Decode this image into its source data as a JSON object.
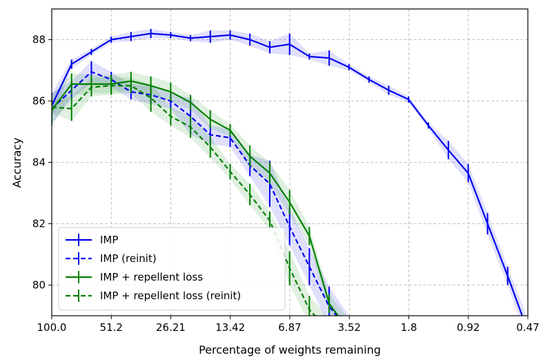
{
  "chart_data": {
    "type": "line",
    "xlabel": "Percentage of weights remaining",
    "ylabel": "Accuracy",
    "x_tick_labels": [
      "100.0",
      "51.2",
      "26.21",
      "13.42",
      "6.87",
      "3.52",
      "1.8",
      "0.92",
      "0.47"
    ],
    "y_ticks": [
      80,
      82,
      84,
      86,
      88
    ],
    "ylim": [
      79.0,
      89.0
    ],
    "x_scale": "log",
    "grid": true,
    "legend_position": "lower-left",
    "series": [
      {
        "name": "IMP",
        "color": "#0000ee",
        "dash": "solid",
        "x": [
          100.0,
          80.0,
          64.0,
          51.2,
          40.96,
          32.77,
          26.21,
          20.97,
          16.78,
          13.42,
          10.74,
          8.59,
          6.87,
          5.5,
          4.4,
          3.52,
          2.81,
          2.25,
          1.8,
          1.44,
          1.15,
          0.92,
          0.74,
          0.59,
          0.47
        ],
        "values": [
          85.85,
          87.2,
          87.6,
          88.0,
          88.1,
          88.2,
          88.15,
          88.05,
          88.1,
          88.15,
          88.0,
          87.75,
          87.85,
          87.45,
          87.4,
          87.1,
          86.7,
          86.35,
          86.05,
          85.2,
          84.4,
          83.65,
          82.0,
          80.3,
          78.5
        ],
        "errors": [
          0.4,
          0.15,
          0.1,
          0.1,
          0.15,
          0.15,
          0.1,
          0.1,
          0.2,
          0.15,
          0.2,
          0.2,
          0.35,
          0.1,
          0.25,
          0.1,
          0.1,
          0.15,
          0.1,
          0.1,
          0.3,
          0.3,
          0.35,
          0.3,
          0.4
        ]
      },
      {
        "name": "IMP (reinit)",
        "color": "#0000ee",
        "dash": "dashed",
        "x": [
          100.0,
          80.0,
          64.0,
          51.2,
          40.96,
          32.77,
          26.21,
          20.97,
          16.78,
          13.42,
          10.74,
          8.59,
          6.87,
          5.5,
          4.4,
          3.52
        ],
        "values": [
          85.75,
          86.35,
          86.95,
          86.7,
          86.3,
          86.2,
          86.0,
          85.5,
          84.9,
          84.8,
          83.9,
          83.3,
          81.9,
          80.6,
          79.3,
          78.5
        ],
        "errors": [
          0.5,
          0.3,
          0.35,
          0.25,
          0.25,
          0.3,
          0.25,
          0.6,
          0.3,
          0.3,
          0.35,
          0.75,
          0.6,
          0.6,
          0.65,
          0.5
        ]
      },
      {
        "name": "IMP + repellent loss",
        "color": "#008000",
        "dash": "solid",
        "x": [
          100.0,
          80.0,
          64.0,
          51.2,
          40.96,
          32.77,
          26.21,
          20.97,
          16.78,
          13.42,
          10.74,
          8.59,
          6.87,
          5.5,
          4.4,
          3.52
        ],
        "values": [
          85.7,
          86.55,
          86.55,
          86.55,
          86.65,
          86.5,
          86.3,
          85.95,
          85.4,
          85.05,
          84.2,
          83.65,
          82.7,
          81.6,
          79.4,
          78.5
        ],
        "errors": [
          0.5,
          0.35,
          0.3,
          0.3,
          0.3,
          0.3,
          0.3,
          0.25,
          0.3,
          0.2,
          0.35,
          0.35,
          0.4,
          0.3,
          0.3,
          0.4
        ]
      },
      {
        "name": "IMP + repellent loss (reinit)",
        "color": "#008000",
        "dash": "dashed",
        "x": [
          100.0,
          80.0,
          64.0,
          51.2,
          40.96,
          32.77,
          26.21,
          20.97,
          16.78,
          13.42,
          10.74,
          8.59,
          6.87,
          5.5,
          4.4
        ],
        "values": [
          85.8,
          85.75,
          86.45,
          86.5,
          86.5,
          86.1,
          85.5,
          85.15,
          84.5,
          83.7,
          82.95,
          82.1,
          80.55,
          79.2,
          78.5
        ],
        "errors": [
          0.2,
          0.4,
          0.3,
          0.3,
          0.25,
          0.45,
          0.3,
          0.35,
          0.35,
          0.25,
          0.35,
          0.3,
          0.55,
          0.45,
          0.4
        ]
      }
    ]
  }
}
